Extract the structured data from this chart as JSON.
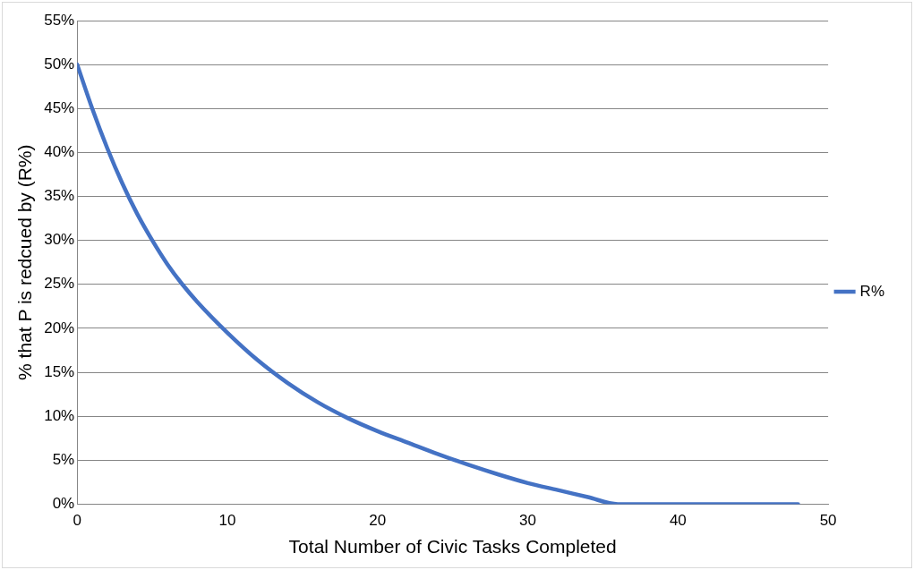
{
  "chart_data": {
    "type": "line",
    "xlabel": "Total Number of Civic Tasks Completed",
    "ylabel": "% that P is redcued by (R%)",
    "x": [
      0,
      1,
      2,
      3,
      4,
      5,
      6,
      7,
      8,
      10,
      12,
      14,
      16,
      18,
      20,
      22,
      24,
      26,
      28,
      30,
      32,
      34,
      36,
      40,
      44,
      48
    ],
    "series": [
      {
        "name": "R%",
        "color": "#4472c4",
        "values": [
          50,
          45,
          40.5,
          36.5,
          33,
          30,
          27.3,
          25,
          23,
          19.5,
          16.4,
          13.8,
          11.6,
          9.8,
          8.3,
          7,
          5.7,
          4.5,
          3.4,
          2.4,
          1.6,
          0.8,
          0,
          0,
          0,
          0
        ]
      }
    ],
    "xlim": [
      0,
      50
    ],
    "xticks": [
      0,
      10,
      20,
      30,
      40,
      50
    ],
    "ylim": [
      0,
      55
    ],
    "yticks": [
      {
        "value": 0,
        "label": "0%"
      },
      {
        "value": 5,
        "label": "5%"
      },
      {
        "value": 10,
        "label": "10%"
      },
      {
        "value": 15,
        "label": "15%"
      },
      {
        "value": 20,
        "label": "20%"
      },
      {
        "value": 25,
        "label": "25%"
      },
      {
        "value": 30,
        "label": "30%"
      },
      {
        "value": 35,
        "label": "35%"
      },
      {
        "value": 40,
        "label": "40%"
      },
      {
        "value": 45,
        "label": "45%"
      },
      {
        "value": 50,
        "label": "50%"
      },
      {
        "value": 55,
        "label": "55%"
      }
    ],
    "grid": "y",
    "legend": "right",
    "marker": "none",
    "line_style": "solid"
  }
}
